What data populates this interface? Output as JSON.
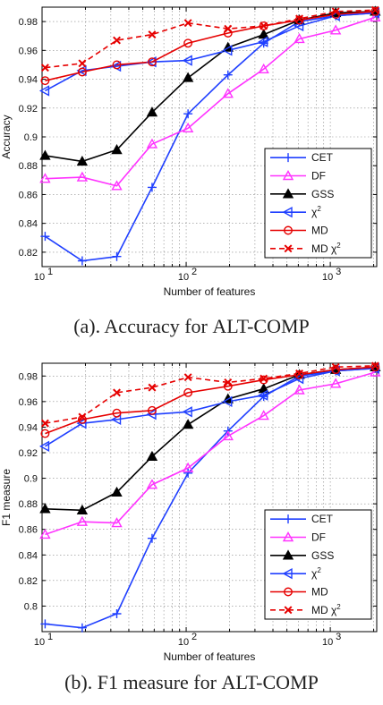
{
  "chart_data": [
    {
      "type": "line",
      "xlabel": "Number of features",
      "ylabel": "Accuracy",
      "xscale": "log",
      "xlim": [
        10,
        2100
      ],
      "ylim": [
        0.81,
        0.99
      ],
      "xticks": [
        {
          "value": 10,
          "label": "10"
        },
        {
          "value": 100,
          "label": "10"
        },
        {
          "value": 1000,
          "label": "10"
        }
      ],
      "xtick_exponents": [
        "1",
        "2",
        "3"
      ],
      "yticks": [
        "0.82",
        "0.84",
        "0.86",
        "0.88",
        "0.9",
        "0.92",
        "0.94",
        "0.96",
        "0.98"
      ],
      "ytick_values": [
        0.82,
        0.84,
        0.86,
        0.88,
        0.9,
        0.92,
        0.94,
        0.96,
        0.98
      ],
      "grid": true,
      "legend_position": "lower-right",
      "x": [
        10.5,
        19,
        33,
        58,
        103,
        195,
        345,
        610,
        1090,
        2050
      ],
      "series": [
        {
          "name": "CET",
          "color": "#1f3fff",
          "marker": "plus",
          "dashed": false,
          "values": [
            0.831,
            0.814,
            0.817,
            0.865,
            0.916,
            0.943,
            0.965,
            0.98,
            0.984,
            0.986
          ]
        },
        {
          "name": "DF",
          "color": "#ff33ff",
          "marker": "triangle-up-open",
          "dashed": false,
          "values": [
            0.871,
            0.872,
            0.866,
            0.895,
            0.906,
            0.93,
            0.947,
            0.968,
            0.974,
            0.983
          ]
        },
        {
          "name": "GSS",
          "color": "#000000",
          "marker": "triangle-up-filled",
          "dashed": false,
          "values": [
            0.887,
            0.883,
            0.891,
            0.917,
            0.941,
            0.962,
            0.971,
            0.981,
            0.986,
            0.987
          ]
        },
        {
          "name": "χ2",
          "color": "#1f3fff",
          "marker": "triangle-left-open",
          "dashed": false,
          "values": [
            0.932,
            0.946,
            0.949,
            0.952,
            0.953,
            0.96,
            0.966,
            0.977,
            0.984,
            0.986
          ]
        },
        {
          "name": "MD",
          "color": "#e60000",
          "marker": "circle-open",
          "dashed": false,
          "values": [
            0.939,
            0.945,
            0.95,
            0.952,
            0.965,
            0.972,
            0.977,
            0.981,
            0.985,
            0.987
          ]
        },
        {
          "name": "MD χ2",
          "color": "#e60000",
          "marker": "x",
          "dashed": true,
          "values": [
            0.948,
            0.951,
            0.967,
            0.971,
            0.979,
            0.975,
            0.977,
            0.982,
            0.987,
            0.988
          ]
        }
      ]
    },
    {
      "type": "line",
      "xlabel": "Number of features",
      "ylabel": "F1 measure",
      "xscale": "log",
      "xlim": [
        10,
        2100
      ],
      "ylim": [
        0.78,
        0.99
      ],
      "xticks": [
        {
          "value": 10,
          "label": "10"
        },
        {
          "value": 100,
          "label": "10"
        },
        {
          "value": 1000,
          "label": "10"
        }
      ],
      "xtick_exponents": [
        "1",
        "2",
        "3"
      ],
      "yticks": [
        "0.8",
        "0.82",
        "0.84",
        "0.86",
        "0.88",
        "0.9",
        "0.92",
        "0.94",
        "0.96",
        "0.98"
      ],
      "ytick_values": [
        0.8,
        0.82,
        0.84,
        0.86,
        0.88,
        0.9,
        0.92,
        0.94,
        0.96,
        0.98
      ],
      "grid": true,
      "legend_position": "lower-right",
      "x": [
        10.5,
        19,
        33,
        58,
        103,
        195,
        345,
        610,
        1090,
        2050
      ],
      "series": [
        {
          "name": "CET",
          "color": "#1f3fff",
          "marker": "plus",
          "dashed": false,
          "values": [
            0.786,
            0.783,
            0.794,
            0.853,
            0.904,
            0.937,
            0.964,
            0.98,
            0.984,
            0.986
          ]
        },
        {
          "name": "DF",
          "color": "#ff33ff",
          "marker": "triangle-up-open",
          "dashed": false,
          "values": [
            0.856,
            0.866,
            0.865,
            0.895,
            0.908,
            0.933,
            0.949,
            0.969,
            0.974,
            0.983
          ]
        },
        {
          "name": "GSS",
          "color": "#000000",
          "marker": "triangle-up-filled",
          "dashed": false,
          "values": [
            0.876,
            0.875,
            0.889,
            0.917,
            0.942,
            0.962,
            0.97,
            0.981,
            0.985,
            0.987
          ]
        },
        {
          "name": "χ2",
          "color": "#1f3fff",
          "marker": "triangle-left-open",
          "dashed": false,
          "values": [
            0.925,
            0.943,
            0.946,
            0.95,
            0.952,
            0.96,
            0.965,
            0.978,
            0.984,
            0.986
          ]
        },
        {
          "name": "MD",
          "color": "#e60000",
          "marker": "circle-open",
          "dashed": false,
          "values": [
            0.935,
            0.946,
            0.951,
            0.953,
            0.967,
            0.972,
            0.977,
            0.981,
            0.985,
            0.987
          ]
        },
        {
          "name": "MD χ2",
          "color": "#e60000",
          "marker": "x",
          "dashed": true,
          "values": [
            0.943,
            0.948,
            0.967,
            0.971,
            0.979,
            0.975,
            0.978,
            0.982,
            0.987,
            0.988
          ]
        }
      ]
    }
  ],
  "captions": [
    {
      "prefix": "(a). Accuracy for ",
      "smallcaps": "ALT-COMP"
    },
    {
      "prefix": "(b). F1 measure for ",
      "smallcaps": "ALT-COMP"
    }
  ]
}
